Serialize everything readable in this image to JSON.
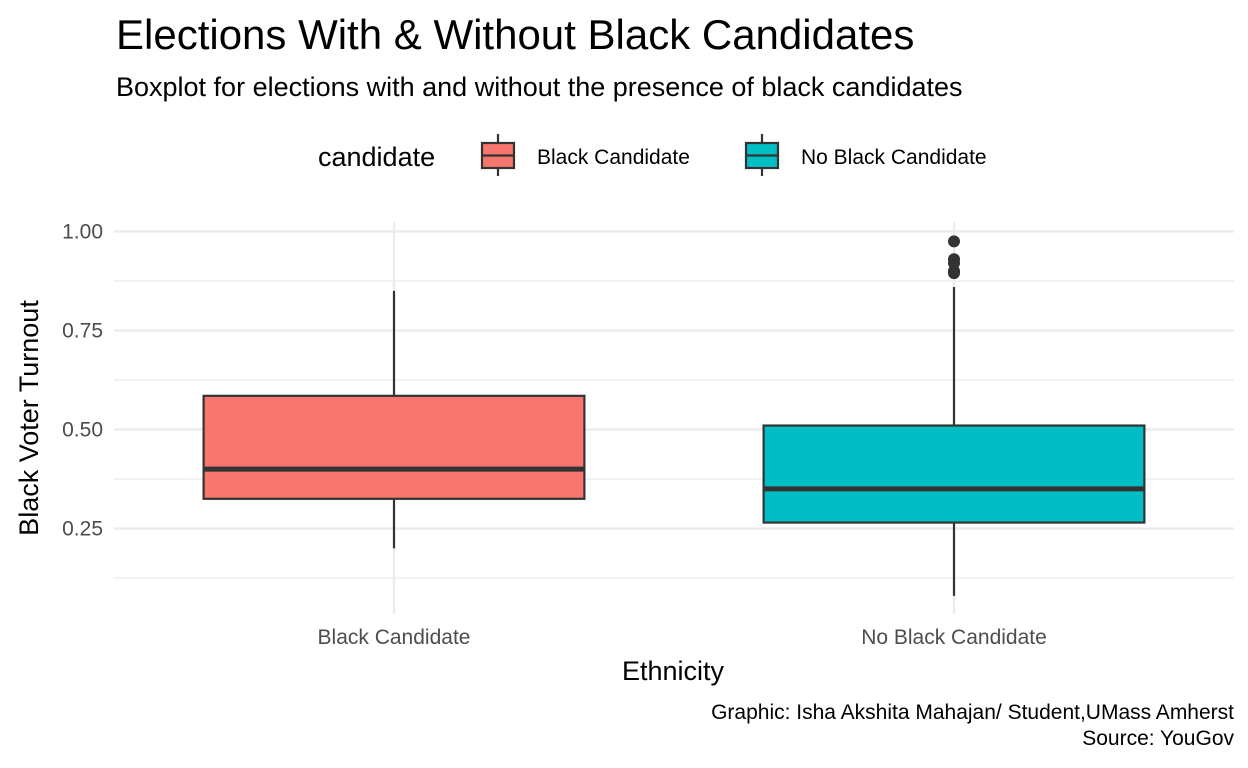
{
  "title": "Elections With & Without Black Candidates",
  "subtitle": "Boxplot for elections with and without the presence of black candidates",
  "caption": {
    "line1": "Graphic: Isha Akshita Mahajan/ Student,UMass Amherst",
    "line2": "Source: YouGov"
  },
  "legend": {
    "title": "candidate",
    "position": "top",
    "items": [
      {
        "label": "Black Candidate",
        "color": "#F8766D"
      },
      {
        "label": "No Black Candidate",
        "color": "#00BFC4"
      }
    ]
  },
  "chart_data": {
    "type": "boxplot",
    "title": "Elections With & Without Black Candidates",
    "subtitle": "Boxplot for elections with and without the presence of black candidates",
    "xlabel": "Ethnicity",
    "ylabel": "Black Voter Turnout",
    "ylim": [
      0.07,
      1.02
    ],
    "yticks": [
      0.25,
      0.5,
      0.75,
      1.0
    ],
    "ytick_labels": [
      "0.25",
      "0.50",
      "0.75",
      "1.00"
    ],
    "grid": true,
    "categories": [
      "Black Candidate",
      "No Black Candidate"
    ],
    "boxes": [
      {
        "name": "Black Candidate",
        "color": "#F8766D",
        "whisker_low": 0.2,
        "q1": 0.325,
        "median": 0.4,
        "q3": 0.585,
        "whisker_high": 0.85,
        "outliers": []
      },
      {
        "name": "No Black Candidate",
        "color": "#00BFC4",
        "whisker_low": 0.08,
        "q1": 0.265,
        "median": 0.35,
        "q3": 0.51,
        "whisker_high": 0.86,
        "outliers": [
          0.975,
          0.93,
          0.92,
          0.9,
          0.895
        ]
      }
    ]
  }
}
